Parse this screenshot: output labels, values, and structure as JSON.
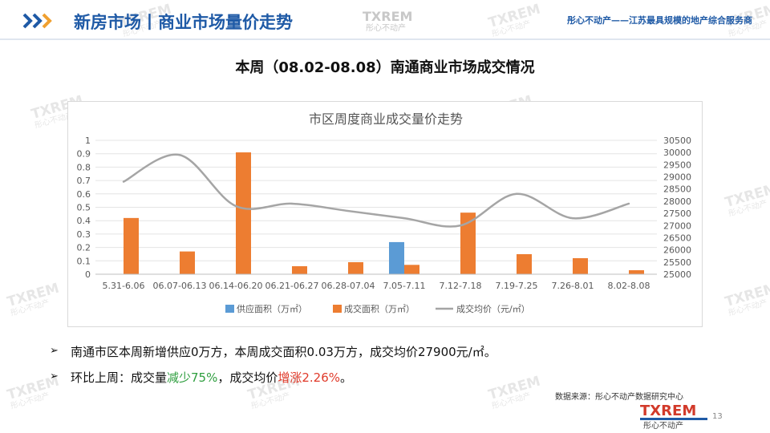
{
  "header": {
    "title": "新房市场丨商业市场量价走势",
    "slogan": "彤心不动产——江苏最具规模的地产综合服务商"
  },
  "sub_title": "本周（08.02-08.08）南通商业市场成交情况",
  "chart_data": {
    "type": "bar",
    "title": "市区周度商业成交量价走势",
    "xlabel": "",
    "ylabel": "",
    "categories": [
      "5.31-6.06",
      "06.07-06.13",
      "06.14-06.20",
      "06.21-06.27",
      "06.28-07.04",
      "7.05-7.11",
      "7.12-7.18",
      "7.19-7.25",
      "7.26-8.01",
      "8.02-8.08"
    ],
    "ylim": [
      0,
      1
    ],
    "y_ticks": [
      0,
      0.1,
      0.2,
      0.3,
      0.4,
      0.5,
      0.6,
      0.7,
      0.8,
      0.9,
      1
    ],
    "y2lim": [
      25000,
      30500
    ],
    "y2_ticks": [
      25000,
      25500,
      26000,
      26500,
      27000,
      27500,
      28000,
      28500,
      29000,
      29500,
      30000,
      30500
    ],
    "grid": true,
    "legend_position": "bottom",
    "series": [
      {
        "name": "供应面积（万㎡）",
        "type": "bar",
        "axis": "left",
        "color": "#5b9bd5",
        "values": [
          0,
          0,
          0,
          0,
          0,
          0.24,
          0,
          0,
          0,
          0
        ]
      },
      {
        "name": "成交面积（万㎡）",
        "type": "bar",
        "axis": "left",
        "color": "#ed7d31",
        "values": [
          0.42,
          0.17,
          0.91,
          0.06,
          0.09,
          0.07,
          0.46,
          0.15,
          0.12,
          0.03
        ]
      },
      {
        "name": "成交均价（元/㎡）",
        "type": "line",
        "axis": "right",
        "color": "#a5a5a5",
        "values": [
          28800,
          29900,
          27800,
          27900,
          27600,
          27300,
          27000,
          28300,
          27300,
          27900
        ]
      }
    ]
  },
  "bullets": [
    {
      "text": "南通市区本周新增供应0万方，本周成交面积0.03万方，成交均价27900元/㎡。"
    },
    {
      "prefix": "环比上周：成交量",
      "highlight_1": "减少75%",
      "middle": "，成交均价",
      "highlight_2": "增涨2.26%",
      "suffix": "。"
    }
  ],
  "source": "数据来源：彤心不动产数据研究中心",
  "watermark": {
    "brand": "TXREM",
    "cn": "彤心不动产"
  },
  "footer": {
    "brand": "TXREM",
    "cn": "彤心不动产",
    "page": "13"
  },
  "colors": {
    "title_blue": "#1f5aa6",
    "supply": "#5b9bd5",
    "deal": "#ed7d31",
    "price": "#a5a5a5",
    "increase_red": "#e03a2a",
    "decrease_green": "#2e9e3e"
  }
}
